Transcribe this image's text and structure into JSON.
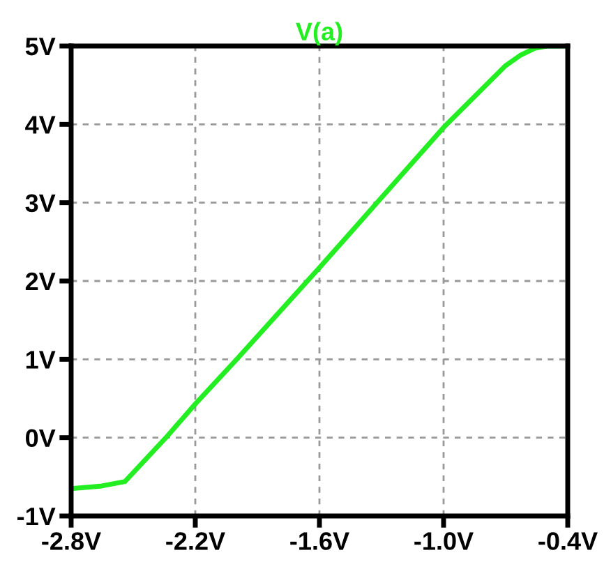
{
  "chart_data": {
    "type": "line",
    "title": "V(a)",
    "x": [
      -2.8,
      -2.66,
      -2.54,
      -2.342,
      -2.2,
      -2.0,
      -1.6,
      -1.0,
      -0.7,
      -0.63,
      -0.56,
      -0.5,
      -0.4
    ],
    "series": [
      {
        "color": "#22ee22",
        "values": [
          -0.65,
          -0.62,
          -0.56,
          0,
          0.43,
          1.0,
          2.17,
          3.96,
          4.75,
          4.88,
          4.97,
          5.0,
          5.0
        ]
      }
    ],
    "xlim": [
      -2.8,
      -0.4
    ],
    "ylim": [
      -1,
      5
    ],
    "xticks": [
      {
        "value": -2.8,
        "label": "-2.8V"
      },
      {
        "value": -2.2,
        "label": "-2.2V"
      },
      {
        "value": -1.6,
        "label": "-1.6V"
      },
      {
        "value": -1.0,
        "label": "-1.0V"
      },
      {
        "value": -0.4,
        "label": "-0.4V"
      }
    ],
    "yticks": [
      {
        "value": -1,
        "label": "-1V"
      },
      {
        "value": 0,
        "label": "0V"
      },
      {
        "value": 1,
        "label": "1V"
      },
      {
        "value": 2,
        "label": "2V"
      },
      {
        "value": 3,
        "label": "3V"
      },
      {
        "value": 4,
        "label": "4V"
      },
      {
        "value": 5,
        "label": "5V"
      }
    ],
    "grid": true,
    "marker": "none",
    "line_style": "solid"
  }
}
